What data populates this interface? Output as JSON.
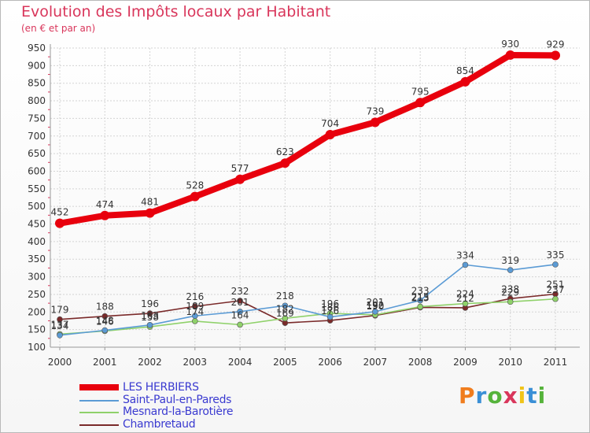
{
  "header": {
    "title": "Evolution des Impôts locaux par Habitant",
    "subtitle": "(en € et par an)"
  },
  "logo": {
    "text": "Proxiti",
    "colors": [
      "#f07d1e",
      "#3a8fd6",
      "#55b33b",
      "#d9365b",
      "#f0c419",
      "#3a8fd6",
      "#55b33b"
    ]
  },
  "chart_data": {
    "type": "line",
    "ylim": [
      100,
      950
    ],
    "yticks": [
      "100",
      "150",
      "200",
      "250",
      "300",
      "350",
      "400",
      "450",
      "500",
      "550",
      "600",
      "650",
      "700",
      "750",
      "800",
      "850",
      "900",
      "950"
    ],
    "x": [
      "2000",
      "2001",
      "2002",
      "2003",
      "2004",
      "2005",
      "2006",
      "2007",
      "2008",
      "2009",
      "2010",
      "2011"
    ],
    "grid": true,
    "legend_position": "bottom-left",
    "series": [
      {
        "name": "LES HERBIERS",
        "color": "#e8000d",
        "values": [
          452,
          474,
          481,
          528,
          577,
          623,
          704,
          739,
          795,
          854,
          930,
          929
        ],
        "labels": [
          "452",
          "474",
          "481",
          "528",
          "577",
          "623",
          "704",
          "739",
          "795",
          "854",
          "930",
          "929"
        ]
      },
      {
        "name": "Saint-Paul-en-Pareds",
        "color": "#5b9bd5",
        "values": [
          134,
          148,
          163,
          189,
          201,
          218,
          186,
          201,
          233,
          334,
          319,
          335
        ],
        "labels": [
          "134",
          "148",
          "163",
          "189",
          "201",
          "218",
          "186",
          "201",
          "233",
          "334",
          "319",
          "335"
        ]
      },
      {
        "name": "Mesnard-la-Barotière",
        "color": "#8fd16a",
        "values": [
          137,
          146,
          158,
          174,
          164,
          182,
          196,
          192,
          215,
          224,
          229,
          237
        ],
        "labels": [
          "137",
          "146",
          "158",
          "174",
          "164",
          "182",
          "196",
          "192",
          "215",
          "224",
          "229",
          "237"
        ]
      },
      {
        "name": "Chambretaud",
        "color": "#7a2a2a",
        "values": [
          179,
          188,
          196,
          216,
          232,
          169,
          176,
          190,
          213,
          212,
          238,
          251
        ],
        "labels": [
          "179",
          "188",
          "196",
          "216",
          "232",
          "169",
          "176",
          "190",
          "213",
          "212",
          "238",
          "251"
        ]
      }
    ]
  }
}
